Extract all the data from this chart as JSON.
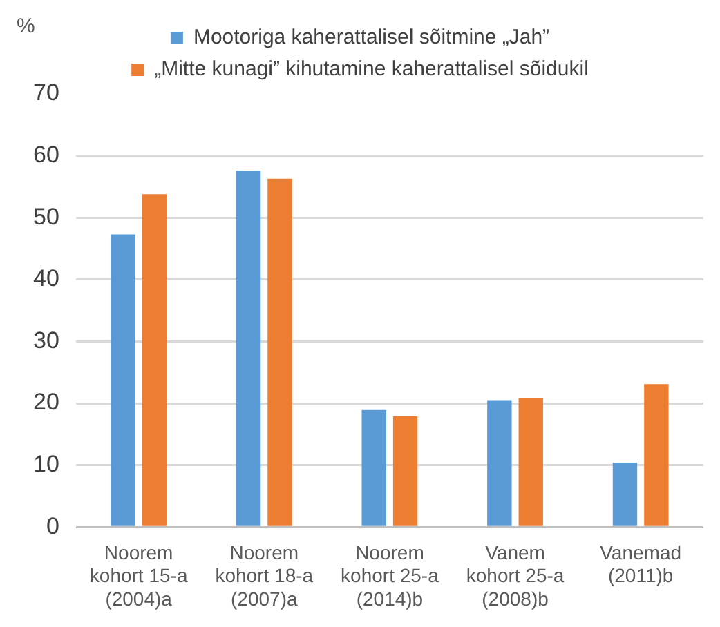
{
  "chart_data": {
    "type": "bar",
    "ylabel": "%",
    "categories": [
      "Noorem kohort 15-a (2004)a",
      "Noorem kohort 18-a (2007)a",
      "Noorem kohort 25-a (2014)b",
      "Vanem kohort 25-a (2008)b",
      "Vanemad (2011)b"
    ],
    "series": [
      {
        "name": "Mootoriga kaherattalisel sõitmine „Jah”",
        "color": "#5b9bd5",
        "values": [
          47.3,
          57.6,
          18.9,
          20.5,
          10.4
        ]
      },
      {
        "name": "„Mitte kunagi” kihutamine kaherattalisel sõidukil",
        "color": "#ed7d31",
        "values": [
          53.8,
          56.3,
          17.9,
          20.9,
          23.1
        ]
      }
    ],
    "ylim": [
      0,
      70
    ],
    "yticks": [
      0,
      10,
      20,
      30,
      40,
      50,
      60,
      70
    ],
    "grid": "y",
    "legend": "top"
  }
}
